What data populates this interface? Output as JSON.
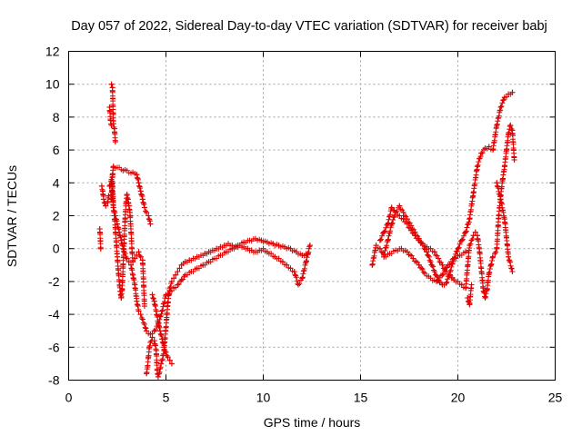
{
  "chart_data": {
    "type": "scatter",
    "title": "Day 057 of 2022, Sidereal Day-to-day VTEC variation (SDTVAR) for receiver babj",
    "xlabel": "GPS time / hours",
    "ylabel": "SDTVAR / TECUs",
    "xlim": [
      0,
      25
    ],
    "ylim": [
      -8,
      12
    ],
    "xticks": [
      0,
      5,
      10,
      15,
      20,
      25
    ],
    "yticks": [
      -8,
      -6,
      -4,
      -2,
      0,
      2,
      4,
      6,
      8,
      10,
      12
    ],
    "grid": true,
    "marker": "+",
    "series": [
      {
        "name": "SDTVAR",
        "color": "#e00000",
        "x": [
          1.6,
          1.65,
          1.7,
          1.75,
          1.8,
          1.9,
          2.0,
          2.05,
          2.1,
          2.15,
          2.2,
          2.25,
          2.3,
          2.35,
          2.4,
          2.45,
          2.5,
          2.55,
          2.6,
          2.65,
          2.7,
          2.75,
          2.8,
          2.85,
          2.9,
          2.95,
          3.0,
          3.05,
          3.1,
          3.15,
          3.2,
          3.25,
          3.3,
          3.4,
          3.5,
          3.6,
          3.7,
          3.8,
          3.9,
          4.0,
          4.05,
          4.1,
          4.15,
          4.2,
          4.3,
          4.4,
          4.5,
          4.55,
          4.6,
          4.65,
          4.7,
          4.75,
          4.8,
          4.85,
          4.9,
          4.95,
          5.0,
          5.05,
          5.1,
          5.15,
          5.2,
          5.3,
          5.4,
          5.5,
          5.6,
          5.7,
          5.8,
          5.9,
          6.0,
          6.2,
          6.4,
          6.6,
          6.8,
          7.0,
          7.2,
          7.4,
          7.6,
          7.8,
          8.0,
          8.2,
          8.4,
          8.6,
          8.8,
          9.0,
          9.2,
          9.4,
          9.6,
          9.8,
          10.0,
          10.2,
          10.4,
          10.6,
          10.8,
          11.0,
          11.2,
          11.4,
          11.6,
          11.8,
          12.0,
          12.2,
          12.4,
          2.1,
          2.2,
          2.3,
          2.4,
          2.5,
          2.6,
          2.7,
          2.8,
          2.9,
          3.0,
          3.1,
          3.2,
          3.3,
          3.4,
          3.5,
          3.6,
          3.7,
          3.8,
          3.9,
          4.0,
          4.2,
          4.4,
          4.6,
          4.8,
          5.0,
          5.2,
          5.4,
          5.6,
          5.8,
          6.0,
          6.3,
          6.6,
          6.9,
          7.2,
          7.5,
          7.8,
          8.1,
          8.4,
          8.7,
          9.0,
          9.3,
          9.6,
          9.9,
          10.2,
          10.5,
          10.8,
          11.1,
          11.4,
          11.7,
          12.0,
          12.3,
          2.2,
          2.25,
          2.3,
          2.35,
          2.4,
          2.2,
          2.25,
          2.3,
          3.5,
          3.6,
          3.7,
          3.8,
          3.9,
          4.0,
          4.1,
          4.2,
          4.3,
          4.4,
          4.5,
          4.6,
          4.7,
          4.8,
          4.9,
          5.0,
          5.1,
          5.2,
          5.3,
          15.6,
          15.8,
          16.0,
          16.2,
          16.4,
          16.6,
          16.8,
          17.0,
          17.2,
          17.4,
          17.6,
          17.8,
          18.0,
          18.2,
          18.4,
          18.6,
          18.8,
          19.0,
          19.2,
          19.4,
          19.6,
          19.8,
          20.0,
          20.2,
          20.4,
          20.6,
          20.8,
          21.0,
          21.2,
          21.4,
          21.6,
          21.8,
          22.0,
          22.2,
          22.4,
          22.6,
          22.8,
          16.0,
          16.2,
          16.4,
          16.6,
          16.8,
          17.0,
          17.2,
          17.4,
          17.6,
          17.8,
          18.0,
          18.2,
          18.4,
          18.6,
          18.8,
          19.0,
          19.2,
          19.4,
          19.6,
          19.8,
          20.0,
          20.2,
          20.4,
          20.6,
          20.7,
          20.8,
          20.9,
          21.0,
          21.1,
          21.2,
          21.3,
          21.4,
          21.5,
          21.6,
          21.7,
          21.8,
          21.9,
          22.0,
          22.1,
          22.2,
          22.3,
          22.4,
          22.5,
          22.6,
          22.7,
          22.8,
          22.9,
          20.5,
          20.6,
          20.7,
          22.0,
          22.2,
          22.4,
          22.6,
          22.8,
          16.2,
          16.5,
          16.8,
          17.1,
          17.4,
          17.7,
          18.0,
          18.3,
          18.6,
          18.9,
          19.2,
          19.5,
          19.8,
          20.1,
          20.4
        ],
        "y": [
          1.2,
          0.0,
          3.8,
          3.5,
          3.0,
          2.6,
          2.8,
          3.2,
          8.6,
          7.8,
          7.5,
          4.0,
          2.5,
          2.0,
          1.2,
          0.4,
          -0.5,
          -1.3,
          -2.0,
          -2.6,
          -3.0,
          -2.5,
          -1.0,
          0.3,
          1.8,
          2.8,
          3.3,
          3.0,
          2.6,
          2.2,
          1.2,
          0.0,
          -0.8,
          -0.6,
          -0.4,
          -0.2,
          -0.5,
          -0.7,
          -3.5,
          -7.6,
          -7.2,
          -6.6,
          -6.0,
          -5.7,
          -5.4,
          -5.6,
          -6.2,
          -7.4,
          -7.8,
          -7.6,
          -7.3,
          -7.0,
          -6.8,
          -6.5,
          -6.2,
          -5.5,
          -4.8,
          -4.0,
          -3.3,
          -2.8,
          -2.4,
          -2.0,
          -1.8,
          -1.6,
          -1.4,
          -1.2,
          -1.0,
          -0.9,
          -0.8,
          -0.7,
          -0.6,
          -0.5,
          -0.4,
          -0.3,
          -0.2,
          -0.1,
          0.0,
          0.1,
          0.2,
          0.3,
          0.2,
          0.1,
          0.2,
          0.1,
          0.0,
          -0.1,
          -0.2,
          -0.1,
          0.0,
          -0.2,
          -0.3,
          -0.5,
          -0.6,
          -0.8,
          -1.0,
          -1.2,
          -1.4,
          -2.2,
          -1.8,
          -0.8,
          0.2,
          3.8,
          4.2,
          2.5,
          2.0,
          1.5,
          1.0,
          0.5,
          0.0,
          -0.3,
          -0.6,
          -0.8,
          -1.0,
          -1.6,
          -2.2,
          -3.2,
          -3.8,
          -4.0,
          -4.3,
          -4.6,
          -5.0,
          -5.2,
          -5.0,
          -4.6,
          -3.8,
          -2.8,
          -2.6,
          -2.4,
          -2.2,
          -1.9,
          -1.6,
          -1.4,
          -1.2,
          -1.0,
          -0.8,
          -0.6,
          -0.4,
          -0.2,
          0.0,
          0.2,
          0.4,
          0.5,
          0.6,
          0.5,
          0.4,
          0.3,
          0.2,
          0.1,
          0.0,
          -0.2,
          -0.4,
          -0.3,
          10.0,
          9.8,
          7.6,
          7.3,
          6.5,
          3.0,
          4.5,
          5.0,
          4.5,
          4.0,
          3.5,
          3.0,
          2.5,
          2.2,
          2.0,
          1.5,
          -2.8,
          -3.2,
          -3.8,
          -4.5,
          -5.0,
          -5.5,
          -6.0,
          -6.3,
          -6.6,
          -6.8,
          -7.0,
          -1.0,
          0.2,
          0.0,
          -0.4,
          0.5,
          1.5,
          2.2,
          2.6,
          2.2,
          1.8,
          1.4,
          1.0,
          0.6,
          0.2,
          -0.2,
          -0.8,
          -1.4,
          -1.9,
          -2.2,
          -2.1,
          -1.4,
          -0.6,
          0.0,
          0.5,
          1.0,
          1.8,
          3.4,
          5.0,
          5.8,
          6.1,
          6.2,
          6.0,
          7.5,
          8.6,
          9.2,
          9.4,
          9.5,
          0.5,
          1.0,
          1.5,
          2.5,
          2.2,
          2.0,
          1.8,
          1.5,
          1.1,
          0.8,
          0.5,
          0.3,
          0.1,
          0.0,
          -0.2,
          -0.6,
          -1.0,
          -1.4,
          -1.6,
          -1.9,
          -2.0,
          -2.2,
          -2.4,
          0.2,
          0.5,
          0.8,
          1.0,
          0.8,
          0.0,
          -1.2,
          -2.4,
          -3.0,
          -2.5,
          -1.5,
          -1.0,
          -0.5,
          -0.3,
          0.0,
          2.0,
          3.2,
          4.2,
          5.0,
          6.0,
          7.0,
          7.5,
          7.2,
          5.4,
          -3.0,
          -3.4,
          -2.2,
          4.0,
          3.0,
          1.8,
          -0.5,
          -1.4,
          -0.5,
          -0.3,
          -0.1,
          0.0,
          -0.2,
          -0.6,
          -1.0,
          -1.5,
          -1.8,
          -2.0,
          -1.6,
          -1.0,
          -0.6,
          -0.4,
          -0.2
        ]
      }
    ]
  }
}
